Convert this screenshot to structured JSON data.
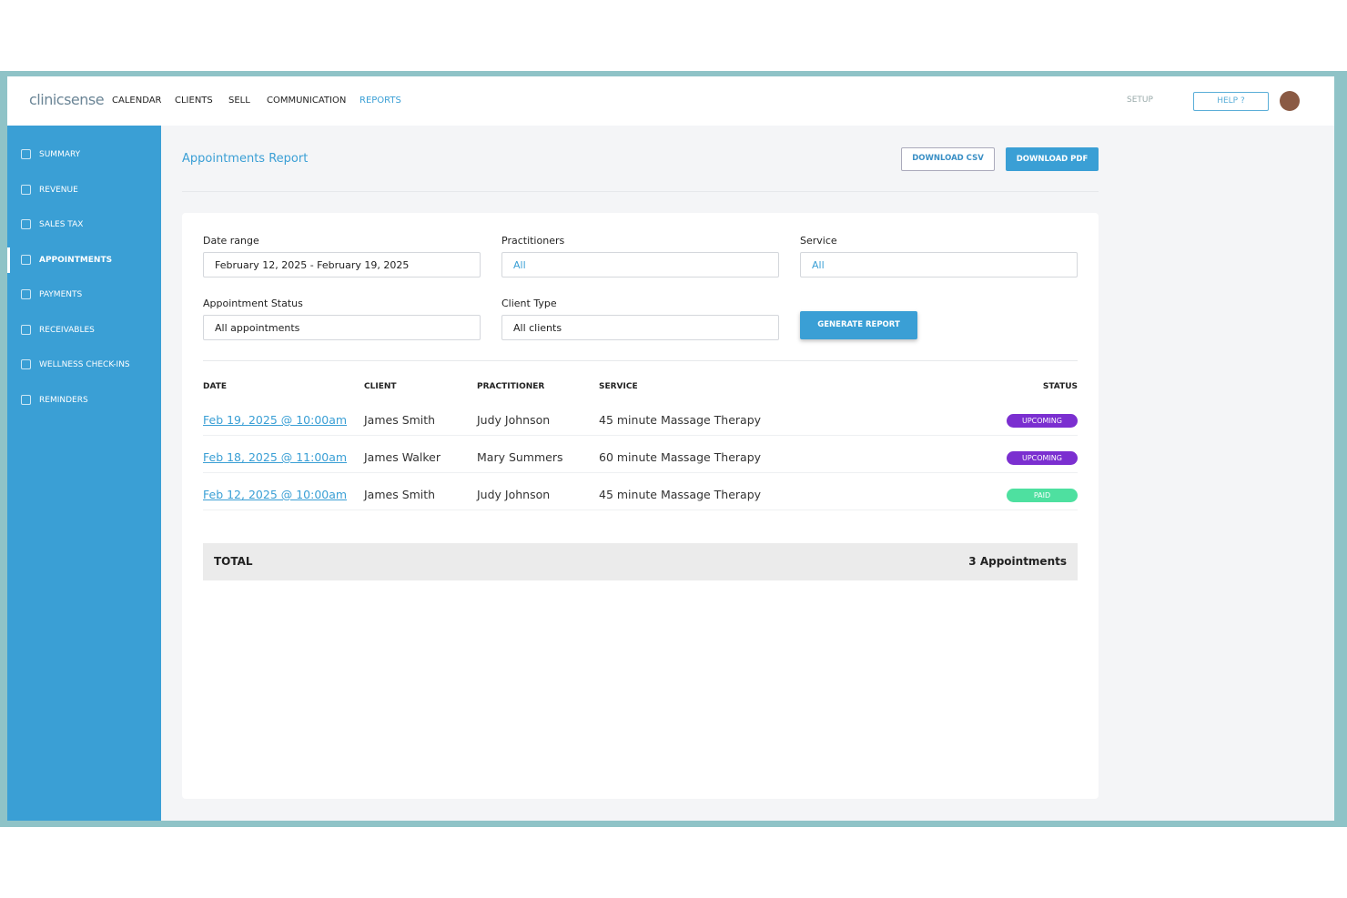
{
  "nav": {
    "logo": "clinicsense",
    "items": [
      "CALENDAR",
      "CLIENTS",
      "SELL",
      "COMMUNICATION",
      "REPORTS"
    ],
    "setup": "SETUP",
    "help": "HELP ?"
  },
  "sidebar": [
    "SUMMARY",
    "REVENUE",
    "SALES TAX",
    "APPOINTMENTS",
    "PAYMENTS",
    "RECEIVABLES",
    "WELLNESS CHECK-INS",
    "REMINDERS"
  ],
  "page": {
    "title": "Appointments Report",
    "download_csv": "DOWNLOAD CSV",
    "download_pdf": "DOWNLOAD PDF"
  },
  "filters": [
    {
      "label": "Date range",
      "value": "February 12, 2025 - February 19, 2025"
    },
    {
      "label": "Practitioners",
      "value": "All"
    },
    {
      "label": "Service",
      "value": "All"
    },
    {
      "label": "Appointment Status",
      "value": "All appointments"
    },
    {
      "label": "Client Type",
      "value": "All clients"
    }
  ],
  "generate": "GENERATE REPORT",
  "table": {
    "columns": [
      "DATE",
      "CLIENT",
      "PRACTITIONER",
      "SERVICE",
      "STATUS"
    ],
    "rows": [
      [
        "Feb 19, 2025 @ 10:00am",
        "James Smith",
        "Judy Johnson",
        "45 minute Massage Therapy",
        "UPCOMING"
      ],
      [
        "Feb 18, 2025 @ 11:00am",
        "James Walker",
        "Mary Summers",
        "60 minute Massage Therapy",
        "UPCOMING"
      ],
      [
        "Feb 12, 2025 @ 10:00am",
        "James Smith",
        "Judy Johnson",
        "45 minute Massage Therapy",
        "PAID"
      ]
    ]
  },
  "total": {
    "label": "TOTAL",
    "value": "3 Appointments"
  }
}
